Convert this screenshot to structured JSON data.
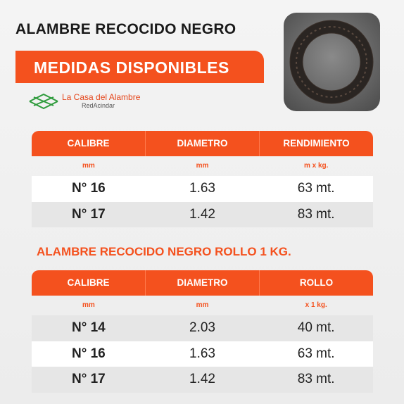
{
  "header": {
    "title": "ALAMBRE RECOCIDO NEGRO",
    "banner": "MEDIDAS DISPONIBLES"
  },
  "logo": {
    "name": "La Casa del Alambre",
    "tagline": "RedAcindar"
  },
  "table1": {
    "columns": [
      "CALIBRE",
      "DIAMETRO",
      "RENDIMIENTO"
    ],
    "units": [
      "mm",
      "mm",
      "m x kg."
    ],
    "rows": [
      [
        "N° 16",
        "1.63",
        "63 mt."
      ],
      [
        "N° 17",
        "1.42",
        "83 mt."
      ]
    ]
  },
  "table2": {
    "title": "ALAMBRE RECOCIDO NEGRO ROLLO 1 KG.",
    "columns": [
      "CALIBRE",
      "DIAMETRO",
      "ROLLO"
    ],
    "units": [
      "mm",
      "mm",
      "x 1 kg."
    ],
    "rows": [
      [
        "N° 14",
        "2.03",
        "40 mt."
      ],
      [
        "N° 16",
        "1.63",
        "63 mt."
      ],
      [
        "N° 17",
        "1.42",
        "83 mt."
      ]
    ]
  }
}
